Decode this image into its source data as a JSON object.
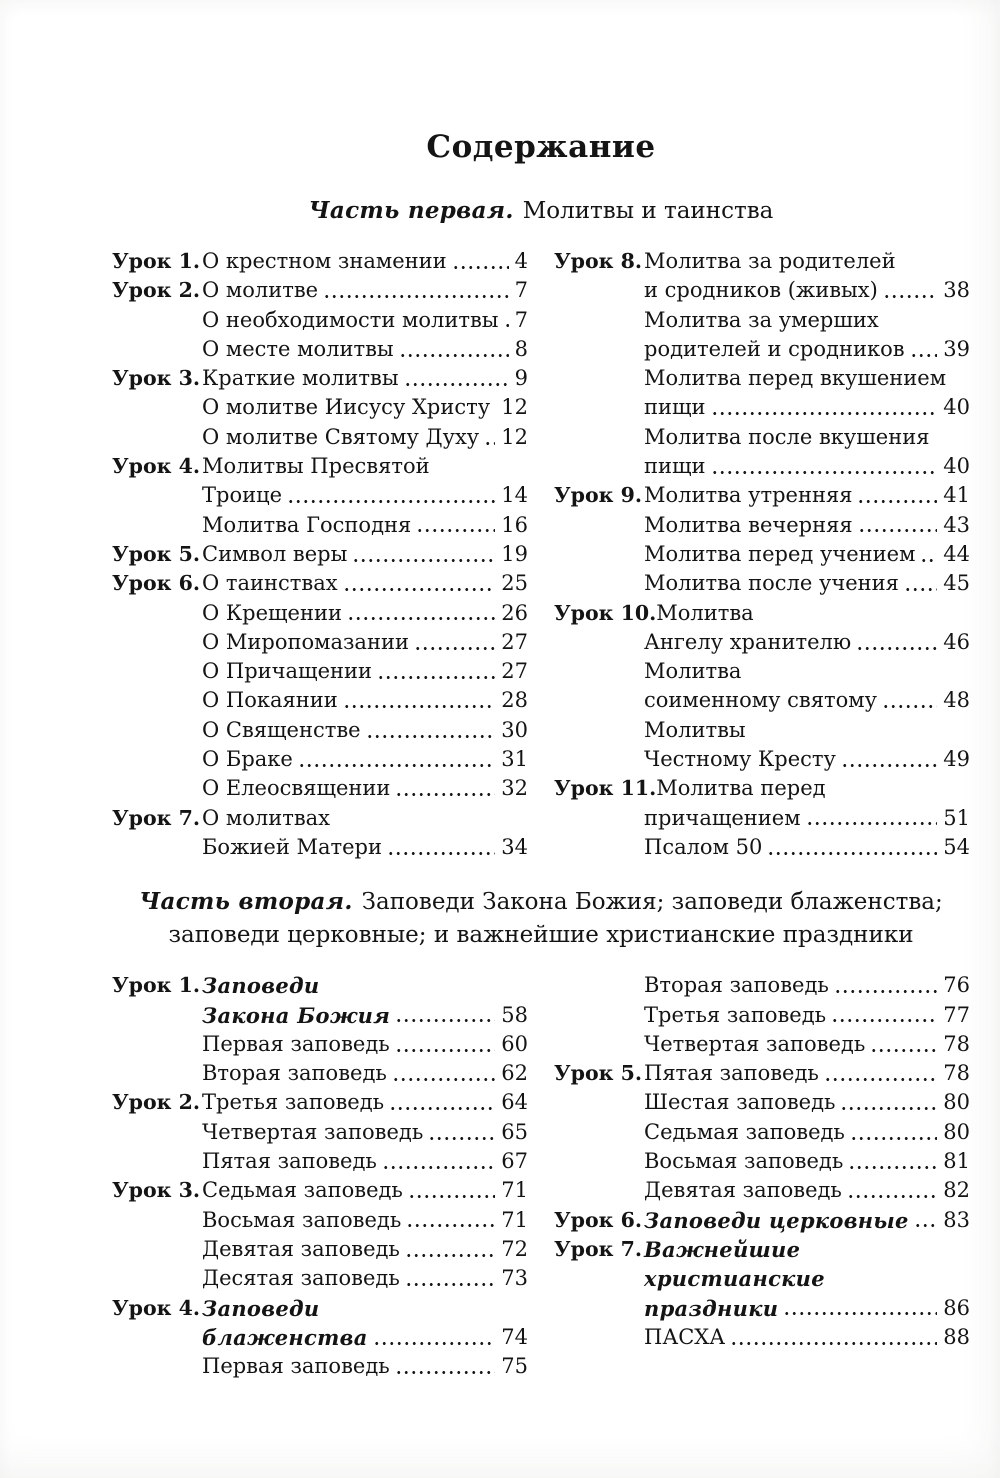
{
  "title": "Содержание",
  "colors": {
    "ink": "#141414",
    "paper": "#ffffff"
  },
  "part1": {
    "heading_script": "Часть первая.",
    "heading_title": "Молитвы и таинства",
    "columns": [
      [
        {
          "label": "Урок 1.",
          "text": "О крестном знамении",
          "page": "4"
        },
        {
          "label": "Урок 2.",
          "text": "О молитве",
          "page": "7"
        },
        {
          "text": "О необходимости молитвы",
          "page": "7"
        },
        {
          "text": "О месте молитвы",
          "page": "8"
        },
        {
          "label": "Урок 3.",
          "text": "Краткие молитвы",
          "page": "9"
        },
        {
          "text": "О молитве Иисусу Христу",
          "page": "12"
        },
        {
          "text": "О молитве Святому Духу",
          "page": "12"
        },
        {
          "label": "Урок 4.",
          "text": "Молитвы Пресвятой"
        },
        {
          "text": "Троице",
          "page": "14"
        },
        {
          "text": "Молитва Господня",
          "page": "16"
        },
        {
          "label": "Урок 5.",
          "text": "Символ веры",
          "page": "19"
        },
        {
          "label": "Урок 6.",
          "text": "О таинствах",
          "page": "25"
        },
        {
          "text": "О Крещении",
          "page": "26"
        },
        {
          "text": "О Миропомазании",
          "page": "27"
        },
        {
          "text": "О Причащении",
          "page": "27"
        },
        {
          "text": "О Покаянии",
          "page": "28"
        },
        {
          "text": "О Священстве",
          "page": "30"
        },
        {
          "text": "О Браке",
          "page": "31"
        },
        {
          "text": "О Елеосвящении",
          "page": "32"
        },
        {
          "label": "Урок 7.",
          "text": "О молитвах"
        },
        {
          "text": "Божией Матери",
          "page": "34"
        }
      ],
      [
        {
          "label": "Урок 8.",
          "text": "Молитва за родителей"
        },
        {
          "text": "и сродников (живых)",
          "page": "38"
        },
        {
          "text": "Молитва за умерших"
        },
        {
          "text": "родителей и сродников",
          "page": "39"
        },
        {
          "text": "Молитва перед вкушением"
        },
        {
          "text": "пищи",
          "page": "40"
        },
        {
          "text": "Молитва после вкушения"
        },
        {
          "text": "пищи",
          "page": "40"
        },
        {
          "label": "Урок 9.",
          "text": "Молитва утренняя",
          "page": "41"
        },
        {
          "text": "Молитва вечерняя",
          "page": "43"
        },
        {
          "text": "Молитва перед учением",
          "page": "44"
        },
        {
          "text": "Молитва после учения",
          "page": "45"
        },
        {
          "label": "Урок 10.",
          "text": "Молитва"
        },
        {
          "text": "Ангелу хранителю",
          "page": "46"
        },
        {
          "text": "Молитва"
        },
        {
          "text": "соименному святому",
          "page": "48"
        },
        {
          "text": "Молитвы"
        },
        {
          "text": "Честному Кресту",
          "page": "49"
        },
        {
          "label": "Урок 11.",
          "text": "Молитва перед"
        },
        {
          "text": "причащением",
          "page": "51"
        },
        {
          "text": "Псалом 50",
          "page": "54"
        }
      ]
    ]
  },
  "part2": {
    "heading_script": "Часть вторая.",
    "heading_line1": "Заповеди Закона Божия; заповеди блаженства;",
    "heading_line2": "заповеди церковные; и важнейшие христианские праздники",
    "columns": [
      [
        {
          "label": "Урок 1.",
          "text": "Заповеди",
          "em": true
        },
        {
          "text": "Закона Божия",
          "page": "58",
          "em": true
        },
        {
          "text": "Первая заповедь",
          "page": "60"
        },
        {
          "text": "Вторая заповедь",
          "page": "62"
        },
        {
          "label": "Урок 2.",
          "text": "Третья заповедь",
          "page": "64"
        },
        {
          "text": "Четвертая заповедь",
          "page": "65"
        },
        {
          "text": "Пятая заповедь",
          "page": "67"
        },
        {
          "label": "Урок 3.",
          "text": "Седьмая заповедь",
          "page": "71"
        },
        {
          "text": "Восьмая заповедь",
          "page": "71"
        },
        {
          "text": "Девятая заповедь",
          "page": "72"
        },
        {
          "text": "Десятая заповедь",
          "page": "73"
        },
        {
          "label": "Урок 4.",
          "text": "Заповеди",
          "em": true
        },
        {
          "text": "блаженства",
          "page": "74",
          "em": true
        },
        {
          "text": "Первая заповедь",
          "page": "75"
        }
      ],
      [
        {
          "text": "Вторая заповедь",
          "page": "76"
        },
        {
          "text": "Третья заповедь",
          "page": "77"
        },
        {
          "text": "Четвертая заповедь",
          "page": "78"
        },
        {
          "label": "Урок 5.",
          "text": "Пятая заповедь",
          "page": "78"
        },
        {
          "text": "Шестая заповедь",
          "page": "80"
        },
        {
          "text": "Седьмая заповедь",
          "page": "80"
        },
        {
          "text": "Восьмая заповедь",
          "page": "81"
        },
        {
          "text": "Девятая заповедь",
          "page": "82"
        },
        {
          "label": "Урок 6.",
          "text": "Заповеди церковные",
          "page": "83",
          "em": true
        },
        {
          "label": "Урок 7.",
          "text": "Важнейшие",
          "em": true
        },
        {
          "text": "христианские",
          "em": true
        },
        {
          "text": "праздники",
          "page": "86",
          "em": true
        },
        {
          "text": "ПАСХА",
          "page": "88"
        }
      ]
    ]
  }
}
